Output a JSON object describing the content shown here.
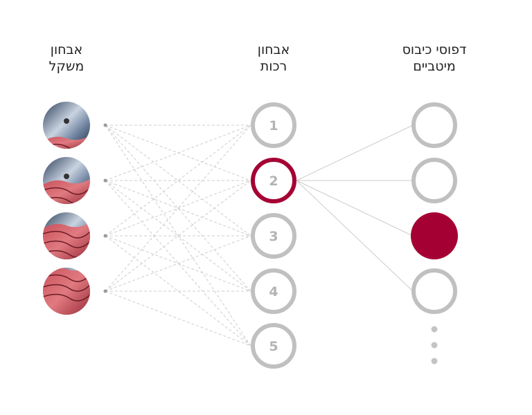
{
  "headers": {
    "weight": [
      "אבחון",
      "משקל"
    ],
    "softness": [
      "אבחון",
      "רכות"
    ],
    "patterns": [
      "דפוסי כיבוס",
      "מיטביים"
    ]
  },
  "load_levels": [
    0.25,
    0.5,
    0.75,
    1.0
  ],
  "softness_levels": [
    "1",
    "2",
    "3",
    "4",
    "5"
  ],
  "selected_softness": "2",
  "pattern_count": 4,
  "selected_pattern_index": 3,
  "colors": {
    "accent": "#a50034",
    "ring": "#c0c0c0",
    "dashed": "#cccccc",
    "text": "#222222"
  }
}
